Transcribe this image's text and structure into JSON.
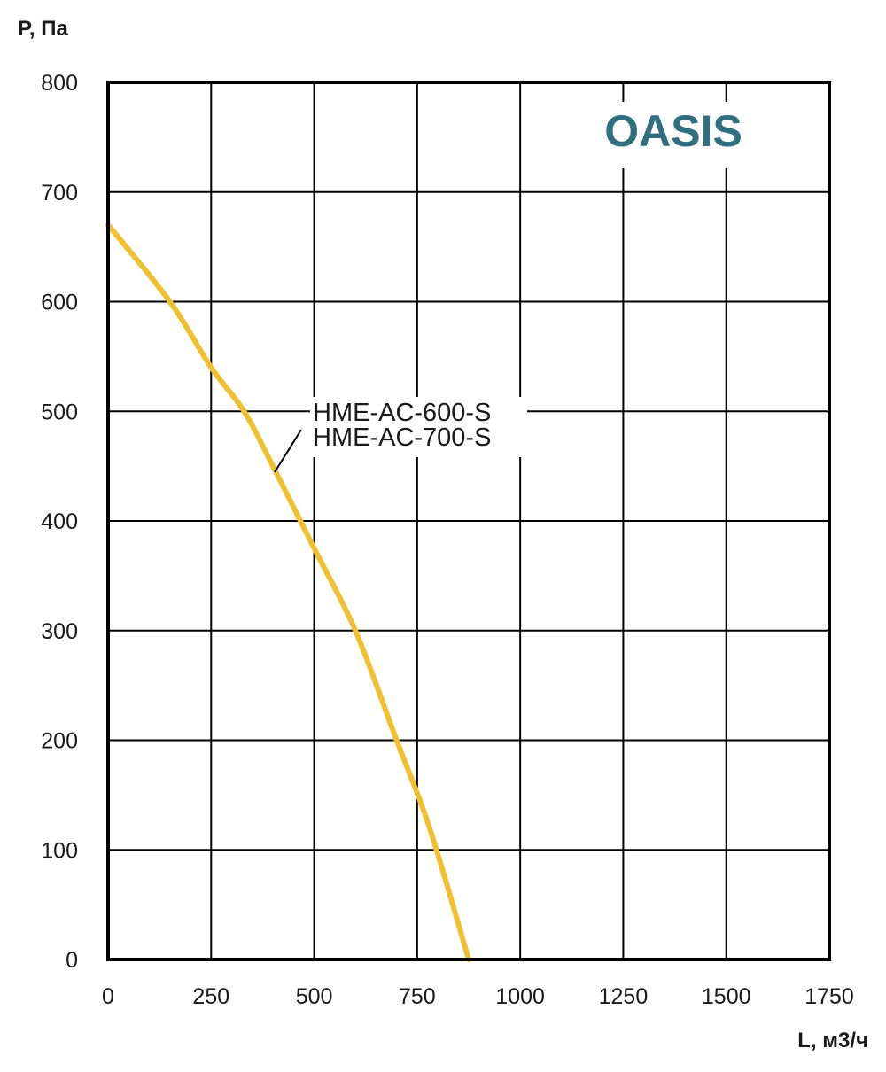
{
  "chart_data": {
    "type": "line",
    "xlabel": "L, м3/ч",
    "ylabel": "P, Па",
    "xlim": [
      0,
      1750
    ],
    "ylim": [
      0,
      800
    ],
    "x_ticks": [
      "0",
      "250",
      "500",
      "750",
      "1000",
      "1250",
      "1500",
      "1750"
    ],
    "y_ticks": [
      "0",
      "100",
      "200",
      "300",
      "400",
      "500",
      "600",
      "700",
      "800"
    ],
    "grid": true,
    "legend": "none",
    "series": [
      {
        "name": "HME-AC-600-S HME-AC-700-S",
        "name_lines": [
          "HME-AC-600-S",
          "HME-AC-700-S"
        ],
        "color": "#f0c030",
        "x": [
          0,
          150,
          250,
          330,
          400,
          500,
          600,
          700,
          780,
          875
        ],
        "y": [
          670,
          600,
          540,
          500,
          450,
          375,
          300,
          200,
          120,
          0
        ]
      }
    ]
  },
  "brand": {
    "text": "OASIS",
    "color": "#2f6f80"
  }
}
